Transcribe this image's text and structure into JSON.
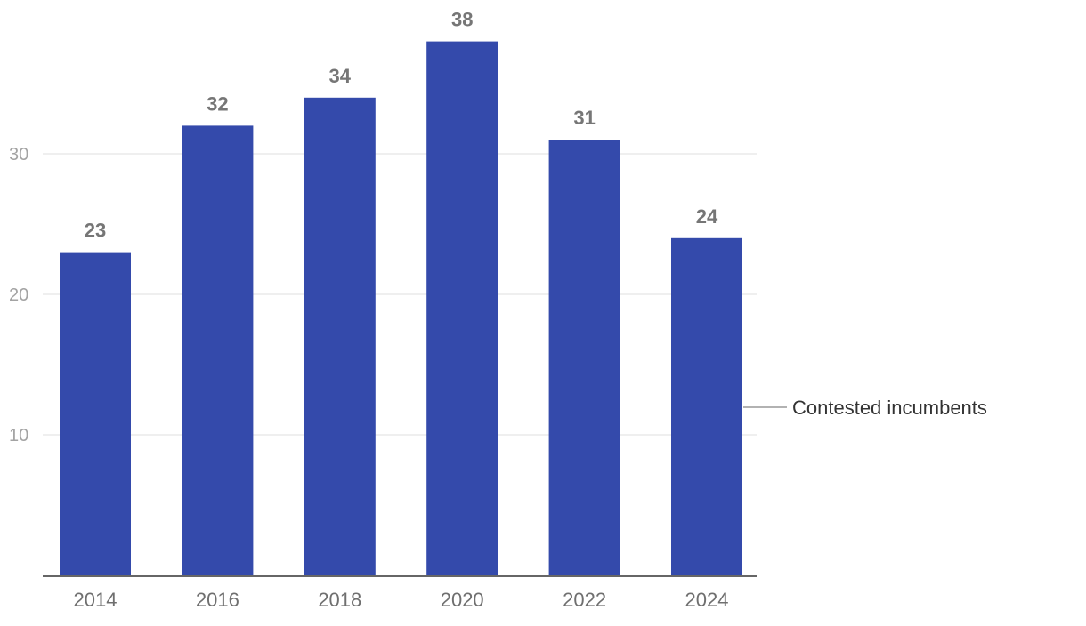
{
  "chart_data": {
    "type": "bar",
    "categories": [
      "2014",
      "2016",
      "2018",
      "2020",
      "2022",
      "2024"
    ],
    "series": [
      {
        "name": "Contested incumbents",
        "values": [
          23,
          32,
          34,
          38,
          31,
          24
        ],
        "color": "#344aab"
      }
    ],
    "ylim": [
      0,
      38
    ],
    "yticks": [
      10,
      20,
      30
    ],
    "grid": true,
    "legend": "right, direct label beside last bar",
    "data_labels": true,
    "colors": {
      "bar": "#344aab",
      "grid": "#e5e5e5",
      "axis": "#333333",
      "legend_leader": "#999999"
    }
  }
}
